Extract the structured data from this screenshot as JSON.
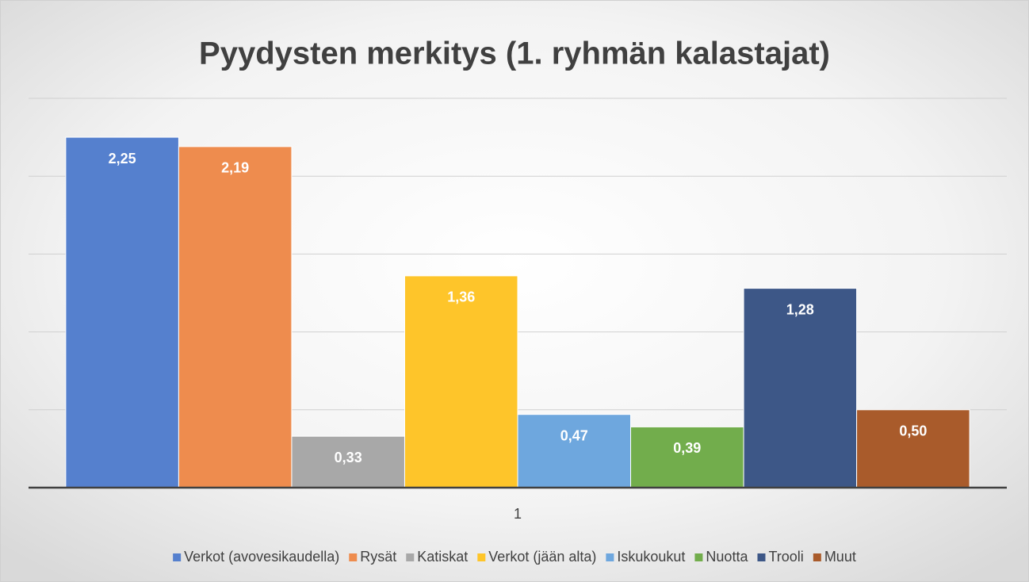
{
  "chart_data": {
    "type": "bar",
    "title": "Pyydysten merkitys (1. ryhmän kalastajat)",
    "categories": [
      "1"
    ],
    "series": [
      {
        "name": "Verkot (avovesikaudella)",
        "color": "#5580ce",
        "values": [
          2.25
        ],
        "value_labels": [
          "2,25"
        ]
      },
      {
        "name": "Rysät",
        "color": "#ee8c4e",
        "values": [
          2.19
        ],
        "value_labels": [
          "2,19"
        ]
      },
      {
        "name": "Katiskat",
        "color": "#a8a8a8",
        "values": [
          0.33
        ],
        "value_labels": [
          "0,33"
        ]
      },
      {
        "name": "Verkot (jään alta)",
        "color": "#fec52a",
        "values": [
          1.36
        ],
        "value_labels": [
          "1,36"
        ]
      },
      {
        "name": "Iskukoukut",
        "color": "#6ea7de",
        "values": [
          0.47
        ],
        "value_labels": [
          "0,47"
        ]
      },
      {
        "name": "Nuotta",
        "color": "#72ad4c",
        "values": [
          0.39
        ],
        "value_labels": [
          "0,39"
        ]
      },
      {
        "name": "Trooli",
        "color": "#3d5787",
        "values": [
          1.28
        ],
        "value_labels": [
          "1,28"
        ]
      },
      {
        "name": "Muut",
        "color": "#a95b2b",
        "values": [
          0.5
        ],
        "value_labels": [
          "0,50"
        ]
      }
    ],
    "ylim": [
      0,
      2.5
    ],
    "yticks": [
      0,
      0.5,
      1,
      1.5,
      2,
      2.5
    ],
    "grid": true,
    "legend": "bottom"
  }
}
